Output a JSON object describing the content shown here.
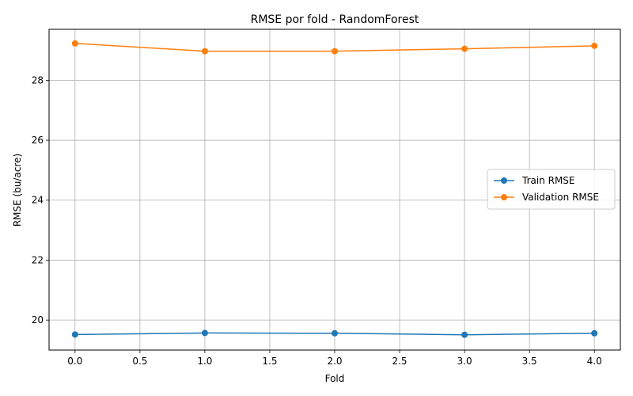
{
  "chart_data": {
    "type": "line",
    "title": "RMSE por fold - RandomForest",
    "xlabel": "Fold",
    "ylabel": "RMSE (bu/acre)",
    "x": [
      0,
      1,
      2,
      3,
      4
    ],
    "xlim": [
      -0.2,
      4.2
    ],
    "ylim": [
      19.0,
      29.7
    ],
    "xticks": [
      0.0,
      0.5,
      1.0,
      1.5,
      2.0,
      2.5,
      3.0,
      3.5,
      4.0
    ],
    "xtick_labels": [
      "0.0",
      "0.5",
      "1.0",
      "1.5",
      "2.0",
      "2.5",
      "3.0",
      "3.5",
      "4.0"
    ],
    "yticks": [
      20,
      22,
      24,
      26,
      28
    ],
    "ytick_labels": [
      "20",
      "22",
      "24",
      "26",
      "28"
    ],
    "grid": true,
    "legend_position": "center-right",
    "series": [
      {
        "name": "Train RMSE",
        "color": "#1f77b4",
        "marker": "circle",
        "values": [
          19.52,
          19.57,
          19.56,
          19.51,
          19.56
        ]
      },
      {
        "name": "Validation RMSE",
        "color": "#ff7f0e",
        "marker": "circle",
        "values": [
          29.23,
          28.97,
          28.97,
          29.05,
          29.15
        ]
      }
    ]
  }
}
